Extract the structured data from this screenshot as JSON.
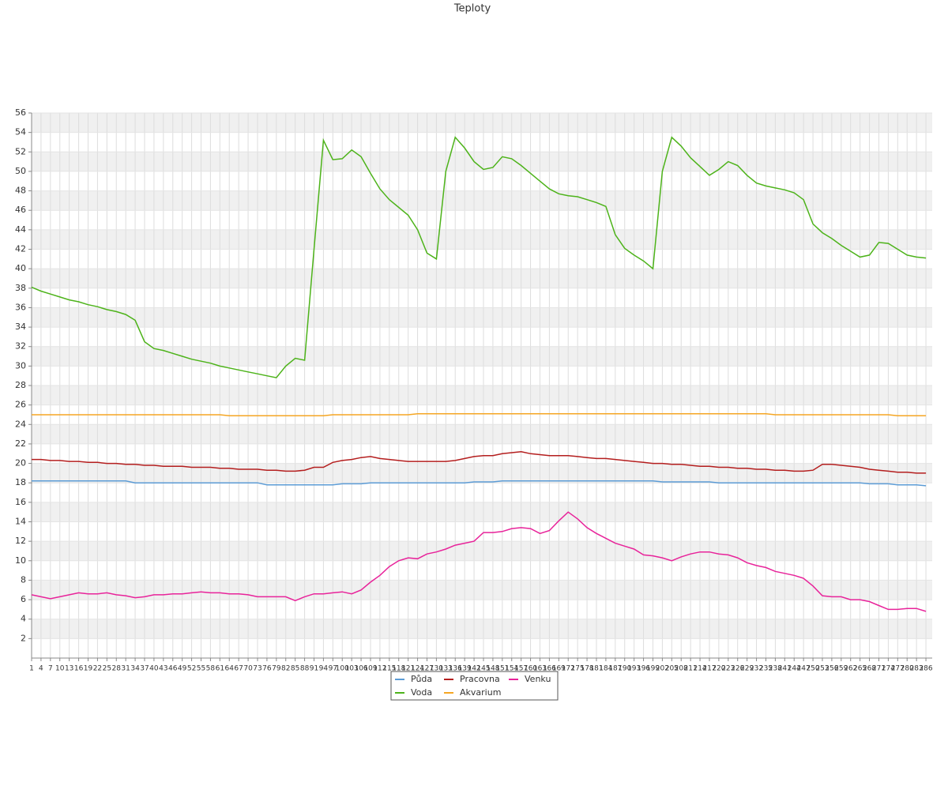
{
  "chart_data": {
    "type": "line",
    "title": "Teploty",
    "x": [
      1,
      4,
      7,
      10,
      13,
      16,
      19,
      22,
      25,
      28,
      31,
      34,
      37,
      40,
      43,
      46,
      49,
      52,
      55,
      58,
      61,
      64,
      67,
      70,
      73,
      76,
      79,
      82,
      85,
      88,
      91,
      94,
      97,
      100,
      103,
      106,
      109,
      112,
      115,
      118,
      121,
      124,
      127,
      130,
      133,
      136,
      139,
      142,
      145,
      148,
      151,
      154,
      157,
      160,
      163,
      166,
      169,
      172,
      175,
      178,
      181,
      184,
      187,
      190,
      193,
      196,
      199,
      202,
      205,
      208,
      211,
      214,
      217,
      220,
      223,
      226,
      229,
      232,
      235,
      238,
      241,
      244,
      247,
      250,
      253,
      256,
      259,
      262,
      265,
      268,
      271,
      274,
      277,
      280,
      283,
      286
    ],
    "xlim": [
      1,
      288
    ],
    "xticks": [
      1,
      4,
      7,
      10,
      13,
      16,
      19,
      22,
      25,
      28,
      31,
      34,
      37,
      40,
      43,
      46,
      49,
      52,
      55,
      58,
      61,
      64,
      67,
      70,
      73,
      76,
      79,
      82,
      85,
      88,
      91,
      94,
      97,
      100,
      103,
      106,
      109,
      112,
      115,
      118,
      121,
      124,
      127,
      130,
      133,
      136,
      139,
      142,
      145,
      148,
      151,
      154,
      157,
      160,
      163,
      166,
      169,
      172,
      175,
      178,
      181,
      184,
      187,
      190,
      193,
      196,
      199,
      202,
      205,
      208,
      211,
      214,
      217,
      220,
      223,
      226,
      229,
      232,
      235,
      238,
      241,
      244,
      247,
      250,
      253,
      256,
      259,
      262,
      265,
      268,
      271,
      274,
      277,
      280,
      283,
      286
    ],
    "ylim": [
      0,
      56
    ],
    "yticks": [
      2,
      4,
      6,
      8,
      10,
      12,
      14,
      16,
      18,
      20,
      22,
      24,
      26,
      28,
      30,
      32,
      34,
      36,
      38,
      40,
      42,
      44,
      46,
      48,
      50,
      52,
      54,
      56
    ],
    "grid": true,
    "legend": "bottom",
    "series": [
      {
        "name": "Půda",
        "color": "#5b9bd5",
        "values": [
          18.2,
          18.2,
          18.2,
          18.2,
          18.2,
          18.2,
          18.2,
          18.2,
          18.2,
          18.2,
          18.2,
          18.0,
          18.0,
          18.0,
          18.0,
          18.0,
          18.0,
          18.0,
          18.0,
          18.0,
          18.0,
          18.0,
          18.0,
          18.0,
          18.0,
          17.8,
          17.8,
          17.8,
          17.8,
          17.8,
          17.8,
          17.8,
          17.8,
          17.9,
          17.9,
          17.9,
          18.0,
          18.0,
          18.0,
          18.0,
          18.0,
          18.0,
          18.0,
          18.0,
          18.0,
          18.0,
          18.0,
          18.1,
          18.1,
          18.1,
          18.2,
          18.2,
          18.2,
          18.2,
          18.2,
          18.2,
          18.2,
          18.2,
          18.2,
          18.2,
          18.2,
          18.2,
          18.2,
          18.2,
          18.2,
          18.2,
          18.2,
          18.1,
          18.1,
          18.1,
          18.1,
          18.1,
          18.1,
          18.0,
          18.0,
          18.0,
          18.0,
          18.0,
          18.0,
          18.0,
          18.0,
          18.0,
          18.0,
          18.0,
          18.0,
          18.0,
          18.0,
          18.0,
          18.0,
          17.9,
          17.9,
          17.9,
          17.8,
          17.8,
          17.8,
          17.7
        ]
      },
      {
        "name": "Voda",
        "color": "#4db31a",
        "values": [
          38.1,
          37.7,
          37.4,
          37.1,
          36.8,
          36.6,
          36.3,
          36.1,
          35.8,
          35.6,
          35.3,
          34.7,
          32.5,
          31.8,
          31.6,
          31.3,
          31.0,
          30.7,
          30.5,
          30.3,
          30.0,
          29.8,
          29.6,
          29.4,
          29.2,
          29.0,
          28.8,
          30.0,
          30.8,
          30.6,
          42,
          53.2,
          51.2,
          51.3,
          52.2,
          51.5,
          49.8,
          48.2,
          47.1,
          46.3,
          45.5,
          44.0,
          41.6,
          41.0,
          50,
          53.5,
          52.4,
          51.0,
          50.2,
          50.4,
          51.5,
          51.3,
          50.6,
          49.8,
          49.0,
          48.2,
          47.7,
          47.5,
          47.4,
          47.1,
          46.8,
          46.4,
          43.5,
          42.1,
          41.4,
          40.8,
          40.0,
          50,
          53.5,
          52.6,
          51.4,
          50.5,
          49.6,
          50.2,
          51,
          50.6,
          49.6,
          48.8,
          48.5,
          48.3,
          48.1,
          47.8,
          47.1,
          44.6,
          43.7,
          43.1,
          42.4,
          41.8,
          41.2,
          41.4,
          42.7,
          42.6,
          42.0,
          41.4,
          41.2,
          41.1
        ]
      },
      {
        "name": "Pracovna",
        "color": "#b41e1e",
        "values": [
          20.4,
          20.4,
          20.3,
          20.3,
          20.2,
          20.2,
          20.1,
          20.1,
          20.0,
          20.0,
          19.9,
          19.9,
          19.8,
          19.8,
          19.7,
          19.7,
          19.7,
          19.6,
          19.6,
          19.6,
          19.5,
          19.5,
          19.4,
          19.4,
          19.4,
          19.3,
          19.3,
          19.2,
          19.2,
          19.3,
          19.6,
          19.6,
          20.1,
          20.3,
          20.4,
          20.6,
          20.7,
          20.5,
          20.4,
          20.3,
          20.2,
          20.2,
          20.2,
          20.2,
          20.2,
          20.3,
          20.5,
          20.7,
          20.8,
          20.8,
          21.0,
          21.1,
          21.2,
          21.0,
          20.9,
          20.8,
          20.8,
          20.8,
          20.7,
          20.6,
          20.5,
          20.5,
          20.4,
          20.3,
          20.2,
          20.1,
          20.0,
          20.0,
          19.9,
          19.9,
          19.8,
          19.7,
          19.7,
          19.6,
          19.6,
          19.5,
          19.5,
          19.4,
          19.4,
          19.3,
          19.3,
          19.2,
          19.2,
          19.3,
          19.9,
          19.9,
          19.8,
          19.7,
          19.6,
          19.4,
          19.3,
          19.2,
          19.1,
          19.1,
          19.0,
          19.0
        ]
      },
      {
        "name": "Akvarium",
        "color": "#f5a623",
        "values": [
          25.0,
          25.0,
          25.0,
          25.0,
          25.0,
          25.0,
          25.0,
          25.0,
          25.0,
          25.0,
          25.0,
          25.0,
          25.0,
          25.0,
          25.0,
          25.0,
          25.0,
          25.0,
          25.0,
          25.0,
          25.0,
          24.9,
          24.9,
          24.9,
          24.9,
          24.9,
          24.9,
          24.9,
          24.9,
          24.9,
          24.9,
          24.9,
          25.0,
          25.0,
          25.0,
          25.0,
          25.0,
          25.0,
          25.0,
          25.0,
          25.0,
          25.1,
          25.1,
          25.1,
          25.1,
          25.1,
          25.1,
          25.1,
          25.1,
          25.1,
          25.1,
          25.1,
          25.1,
          25.1,
          25.1,
          25.1,
          25.1,
          25.1,
          25.1,
          25.1,
          25.1,
          25.1,
          25.1,
          25.1,
          25.1,
          25.1,
          25.1,
          25.1,
          25.1,
          25.1,
          25.1,
          25.1,
          25.1,
          25.1,
          25.1,
          25.1,
          25.1,
          25.1,
          25.1,
          25.0,
          25.0,
          25.0,
          25.0,
          25.0,
          25.0,
          25.0,
          25.0,
          25.0,
          25.0,
          25.0,
          25.0,
          25.0,
          24.9,
          24.9,
          24.9,
          24.9
        ]
      },
      {
        "name": "Venku",
        "color": "#e8239a",
        "values": [
          6.5,
          6.3,
          6.1,
          6.3,
          6.5,
          6.7,
          6.6,
          6.6,
          6.7,
          6.5,
          6.4,
          6.2,
          6.3,
          6.5,
          6.5,
          6.6,
          6.6,
          6.7,
          6.8,
          6.7,
          6.7,
          6.6,
          6.6,
          6.5,
          6.3,
          6.3,
          6.3,
          6.3,
          5.9,
          6.3,
          6.6,
          6.6,
          6.7,
          6.8,
          6.6,
          7.0,
          7.8,
          8.5,
          9.4,
          10.0,
          10.3,
          10.2,
          10.7,
          10.9,
          11.2,
          11.6,
          11.8,
          12.0,
          12.9,
          12.9,
          13.0,
          13.3,
          13.4,
          13.3,
          12.8,
          13.1,
          14.1,
          15.0,
          14.3,
          13.4,
          12.8,
          12.3,
          11.8,
          11.5,
          11.2,
          10.6,
          10.5,
          10.3,
          10.0,
          10.4,
          10.7,
          10.9,
          10.9,
          10.7,
          10.6,
          10.3,
          9.8,
          9.5,
          9.3,
          8.9,
          8.7,
          8.5,
          8.2,
          7.4,
          6.4,
          6.3,
          6.3,
          6.0,
          6.0,
          5.8,
          5.4,
          5.0,
          5.0,
          5.1,
          5.1,
          4.8
        ]
      }
    ]
  }
}
